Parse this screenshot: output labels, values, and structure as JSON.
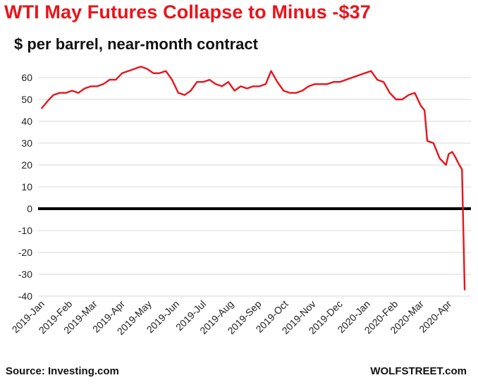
{
  "chart_data": {
    "type": "line",
    "title": "WTI May Futures Collapse to Minus -$37",
    "subtitle": "$ per barrel, near-month contract",
    "xlabel": "",
    "ylabel": "",
    "ylim": [
      -40,
      60
    ],
    "yticks": [
      60,
      50,
      40,
      30,
      20,
      10,
      0,
      -10,
      -20,
      -30,
      -40
    ],
    "xticks": [
      "2019-Jan",
      "2019-Feb",
      "2019-Mar",
      "2019-Apr",
      "2019-May",
      "2019-Jun",
      "2019-Jul",
      "2019-Aug",
      "2019-Sep",
      "2019-Oct",
      "2019-Nov",
      "2019-Dec",
      "2020-Jan",
      "2020-Feb",
      "2020-Mar",
      "2020-Apr"
    ],
    "grid": "horizontal",
    "zero_line": true,
    "line_color": "#e8141a",
    "title_color": "#e8141a",
    "series": [
      {
        "x": [
          "2019-01-02",
          "2019-01-08",
          "2019-01-15",
          "2019-01-22",
          "2019-01-29",
          "2019-02-05",
          "2019-02-12",
          "2019-02-19",
          "2019-02-26",
          "2019-03-05",
          "2019-03-12",
          "2019-03-19",
          "2019-03-26",
          "2019-04-02",
          "2019-04-09",
          "2019-04-16",
          "2019-04-23",
          "2019-04-30",
          "2019-05-07",
          "2019-05-14",
          "2019-05-21",
          "2019-05-28",
          "2019-06-04",
          "2019-06-11",
          "2019-06-18",
          "2019-06-25",
          "2019-07-02",
          "2019-07-09",
          "2019-07-16",
          "2019-07-23",
          "2019-07-30",
          "2019-08-06",
          "2019-08-13",
          "2019-08-20",
          "2019-08-27",
          "2019-09-03",
          "2019-09-10",
          "2019-09-16",
          "2019-09-23",
          "2019-09-30",
          "2019-10-07",
          "2019-10-14",
          "2019-10-21",
          "2019-10-28",
          "2019-11-04",
          "2019-11-11",
          "2019-11-18",
          "2019-11-25",
          "2019-12-02",
          "2019-12-09",
          "2019-12-16",
          "2019-12-23",
          "2019-12-30",
          "2020-01-06",
          "2020-01-13",
          "2020-01-20",
          "2020-01-27",
          "2020-02-03",
          "2020-02-10",
          "2020-02-17",
          "2020-02-24",
          "2020-03-02",
          "2020-03-06",
          "2020-03-09",
          "2020-03-16",
          "2020-03-23",
          "2020-03-30",
          "2020-04-02",
          "2020-04-06",
          "2020-04-09",
          "2020-04-14",
          "2020-04-17",
          "2020-04-20"
        ],
        "values": [
          46,
          49,
          52,
          53,
          53,
          54,
          53,
          55,
          56,
          56,
          57,
          59,
          59,
          62,
          63,
          64,
          65,
          64,
          62,
          62,
          63,
          59,
          53,
          52,
          54,
          58,
          58,
          59,
          57,
          56,
          58,
          54,
          56,
          55,
          56,
          56,
          57,
          63,
          58,
          54,
          53,
          53,
          54,
          56,
          57,
          57,
          57,
          58,
          58,
          59,
          60,
          61,
          62,
          63,
          59,
          58,
          53,
          50,
          50,
          52,
          53,
          47,
          45,
          31,
          30,
          23,
          20,
          25,
          26,
          24,
          20,
          18,
          -37
        ]
      }
    ]
  },
  "footer": {
    "source": "Source: Investing.com",
    "brand": "WOLFSTREET.com"
  }
}
